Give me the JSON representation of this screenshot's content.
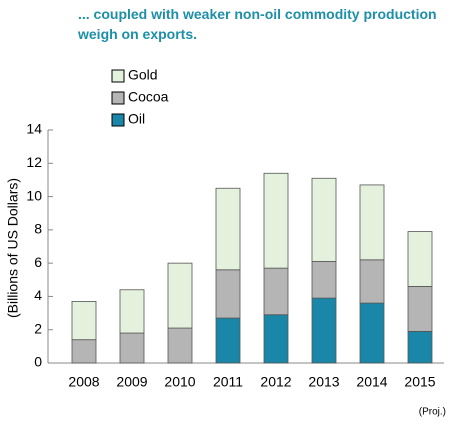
{
  "chart_data": {
    "type": "stacked_bar",
    "title": "... coupled with weaker non-oil commodity production weigh on exports.",
    "y_label": "(Billions of US Dollars)",
    "annotation": "(Proj.)",
    "categories": [
      "2008",
      "2009",
      "2010",
      "2011",
      "2012",
      "2013",
      "2014",
      "2015"
    ],
    "series": [
      {
        "name": "Oil",
        "color": "#1a86a8",
        "values": [
          0,
          0,
          0,
          2.7,
          2.9,
          3.9,
          3.6,
          1.9
        ]
      },
      {
        "name": "Cocoa",
        "color": "#b5b5b5",
        "values": [
          1.4,
          1.8,
          2.1,
          2.9,
          2.8,
          2.2,
          2.6,
          2.7
        ]
      },
      {
        "name": "Gold",
        "color": "#e4f1dc",
        "values": [
          2.3,
          2.6,
          3.9,
          4.9,
          5.7,
          5.0,
          4.5,
          3.3
        ]
      }
    ],
    "ylim": [
      0,
      14
    ],
    "yticks": [
      0,
      2,
      4,
      6,
      8,
      10,
      12,
      14
    ],
    "legend": "upper left",
    "grid": false
  }
}
